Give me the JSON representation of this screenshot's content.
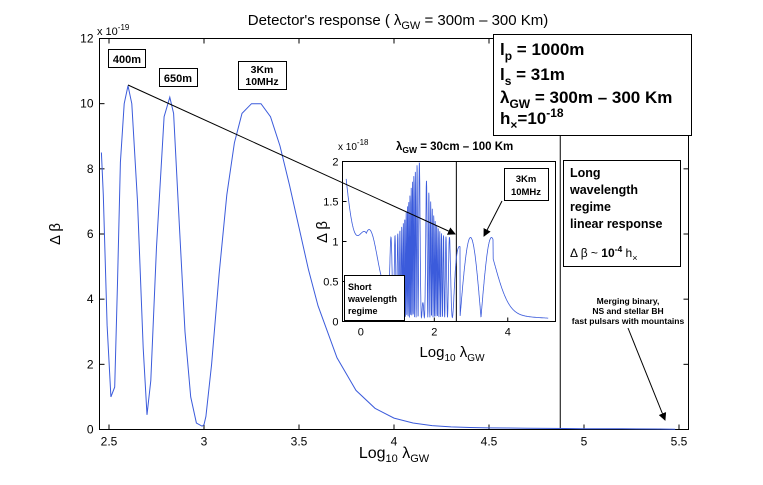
{
  "chart_data": [
    {
      "type": "line",
      "title_main": "Detector's response (",
      "title_lambda": "λ",
      "title_sub": "GW",
      "title_rest": " = 300m – 300 Km)",
      "exponent_prefix": "x 10",
      "exponent_power": "-19",
      "xlabel_main": "Log",
      "xlabel_sub": "10",
      "xlabel_lambda": " λ",
      "xlabel_gw": "GW",
      "ylabel": "Δ β",
      "xlim": [
        2.45,
        5.55
      ],
      "ylim": [
        0,
        12
      ],
      "x_ticks": [
        2.5,
        3,
        3.5,
        4,
        4.5,
        5,
        5.5
      ],
      "x_tick_labels": [
        "2.5",
        "3",
        "3.5",
        "4",
        "4.5",
        "5",
        "5.5"
      ],
      "y_ticks": [
        0,
        2,
        4,
        6,
        8,
        10,
        12
      ],
      "y_tick_labels": [
        "0",
        "2",
        "4",
        "6",
        "8",
        "10",
        "12"
      ],
      "series": [
        {
          "name": "response",
          "color": "#3b5bdb",
          "x": [
            2.46,
            2.47,
            2.49,
            2.51,
            2.53,
            2.545,
            2.56,
            2.58,
            2.6,
            2.62,
            2.65,
            2.68,
            2.7,
            2.72,
            2.75,
            2.79,
            2.82,
            2.84,
            2.87,
            2.9,
            2.93,
            2.96,
            2.99,
            3.0,
            3.01,
            3.04,
            3.08,
            3.12,
            3.16,
            3.2,
            3.25,
            3.3,
            3.35,
            3.4,
            3.45,
            3.5,
            3.55,
            3.6,
            3.7,
            3.8,
            3.9,
            4.0,
            4.1,
            4.2,
            4.3,
            4.4,
            4.5,
            4.6,
            4.7,
            4.8,
            4.9,
            5.0,
            5.2,
            5.4,
            5.48
          ],
          "y": [
            8.5,
            7.2,
            3.2,
            1.0,
            1.3,
            4.5,
            8.2,
            10.0,
            10.55,
            10.0,
            7.0,
            2.5,
            0.45,
            1.5,
            5.6,
            9.6,
            10.2,
            9.7,
            6.3,
            3.0,
            1.0,
            0.2,
            0.1,
            0.15,
            0.4,
            2.0,
            4.8,
            7.2,
            8.8,
            9.7,
            10.0,
            10.0,
            9.6,
            8.7,
            7.5,
            6.2,
            4.9,
            3.8,
            2.2,
            1.2,
            0.65,
            0.35,
            0.2,
            0.12,
            0.08,
            0.06,
            0.05,
            0.045,
            0.04,
            0.035,
            0.03,
            0.025,
            0.02,
            0.015,
            0.01
          ]
        }
      ],
      "vertical_line_x": 4.875,
      "annotations": {
        "label_400m": "400m",
        "label_650m": "650m",
        "label_3km_1": "3Km",
        "label_3km_2": "10MHz",
        "params_lp_main": "l",
        "params_lp_sub": "p",
        "params_lp_val": " = 1000m",
        "params_ls_main": "l",
        "params_ls_sub": "s",
        "params_ls_val": " = 31m",
        "params_lam_main": "λ",
        "params_lam_sub": "GW",
        "params_lam_val": " = 300m – 300 Km",
        "params_h_main": "h",
        "params_h_sub": "×",
        "params_h_val": "=10",
        "params_h_exp": "-18",
        "long_regime_1": "Long",
        "long_regime_2": "wavelength",
        "long_regime_3": "regime",
        "long_regime_4": "linear response",
        "long_formula_main": "Δ β ~ ",
        "long_formula_coef": "10",
        "long_formula_exp": "-4",
        "long_formula_h": " h",
        "long_formula_hsub": "×",
        "sources_1": "Merging binary,",
        "sources_2": "NS and stellar BH",
        "sources_3": "fast pulsars with mountains"
      }
    },
    {
      "type": "line",
      "title_prefix": "x 10",
      "title_power": "-18",
      "title_lambda": "λ",
      "title_sub": "GW",
      "title_rest": " = 30cm – 100 Km",
      "xlabel_main": "Log",
      "xlabel_sub": "10",
      "xlabel_lambda": " λ",
      "xlabel_gw": "GW",
      "ylabel": "Δ β",
      "xlim": [
        -0.5,
        5.3
      ],
      "ylim": [
        0,
        2
      ],
      "x_ticks": [
        0,
        2,
        4
      ],
      "x_tick_labels": [
        "0",
        "2",
        "4"
      ],
      "y_ticks": [
        0,
        0.5,
        1,
        1.5,
        2
      ],
      "y_tick_labels": [
        "0",
        "0.5",
        "1",
        "1.5",
        "2"
      ],
      "vertical_line_x": 2.6,
      "annotations": {
        "short_1": "Short",
        "short_2": "wavelength",
        "short_3": "regime",
        "peak_1": "3Km",
        "peak_2": "10MHz"
      }
    }
  ]
}
